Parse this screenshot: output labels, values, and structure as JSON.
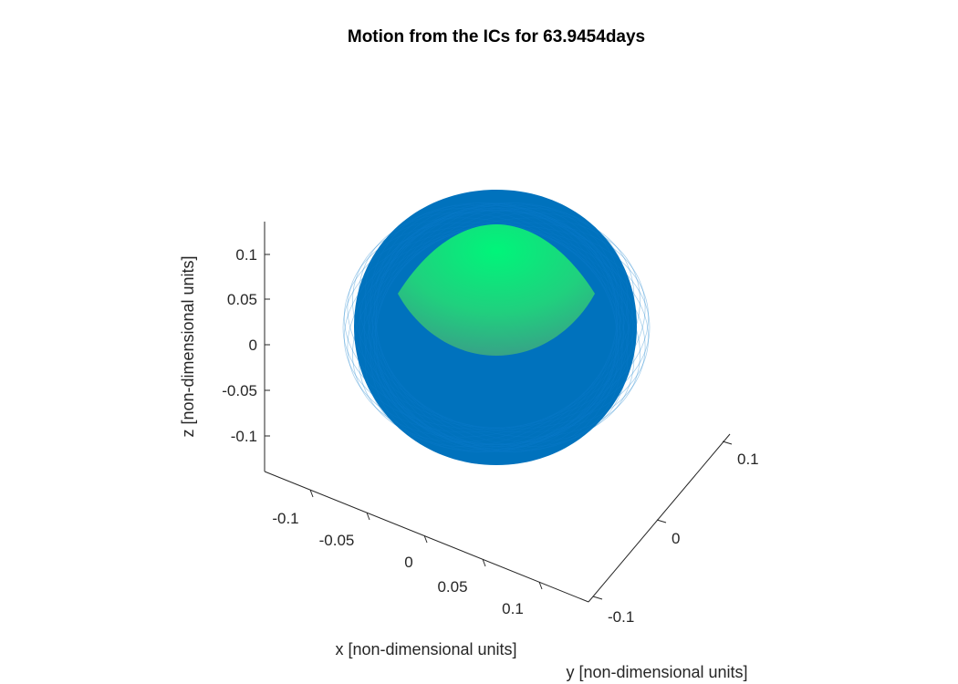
{
  "chart_data": {
    "type": "surface3d",
    "title": "Motion from the ICs for 63.9454days",
    "xlabel": "x [non-dimensional units]",
    "ylabel": "y [non-dimensional units]",
    "zlabel": "z [non-dimensional units]",
    "x_ticks": [
      "-0.1",
      "-0.05",
      "0",
      "0.05",
      "0.1"
    ],
    "y_ticks": [
      "-0.1",
      "0",
      "0.1"
    ],
    "z_ticks": [
      "0.1",
      "0.05",
      "0",
      "-0.05",
      "-0.1"
    ],
    "xlim": [
      -0.14,
      0.14
    ],
    "ylim": [
      -0.14,
      0.14
    ],
    "zlim": [
      -0.14,
      0.13
    ],
    "grid": false,
    "series": [
      {
        "kind": "trajectory",
        "color": "#0072BD"
      },
      {
        "kind": "sphere",
        "color_top": "#00F57A",
        "color_bottom": "#2FA58B"
      }
    ]
  }
}
